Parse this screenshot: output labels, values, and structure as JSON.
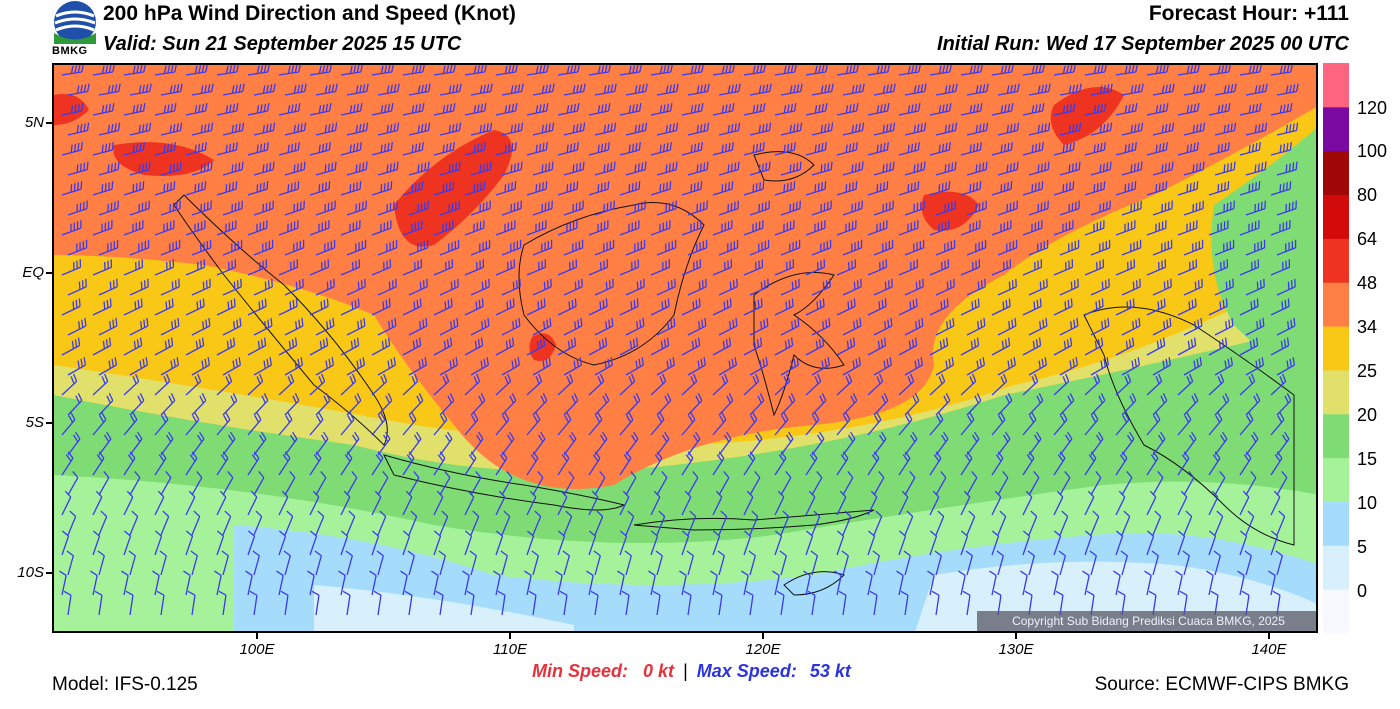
{
  "header": {
    "logo_text": "BMKG",
    "title": "200 hPa Wind Direction and Speed (Knot)",
    "valid": "Valid: Sun 21 September 2025 15 UTC",
    "forecast_hour": "Forecast Hour: +111",
    "initial_run": "Initial Run: Wed 17 September 2025 00 UTC"
  },
  "map": {
    "lat_labels": [
      "5N",
      "EQ",
      "5S",
      "10S"
    ],
    "lon_labels": [
      "100E",
      "110E",
      "120E",
      "130E",
      "140E"
    ],
    "copyright": "Copyright Sub Bidang Prediksi Cuaca BMKG, 2025"
  },
  "colorbar": {
    "labels": [
      "120",
      "100",
      "80",
      "64",
      "48",
      "34",
      "25",
      "20",
      "15",
      "10",
      "5",
      "0"
    ],
    "colors": [
      "#f8f8ff",
      "#d7f0fb",
      "#a6dcfb",
      "#a6f29b",
      "#7fdc74",
      "#e1e06a",
      "#f9c817",
      "#ff7f45",
      "#ee3420",
      "#d20a0a",
      "#a00808",
      "#7b0aa3",
      "#ff6480"
    ]
  },
  "footer": {
    "min_speed_label": "Min Speed:",
    "min_speed_value": "0 kt",
    "separator": "|",
    "max_speed_label": "Max Speed:",
    "max_speed_value": "53 kt",
    "model": "Model: IFS-0.125",
    "source": "Source: ECMWF-CIPS BMKG"
  }
}
